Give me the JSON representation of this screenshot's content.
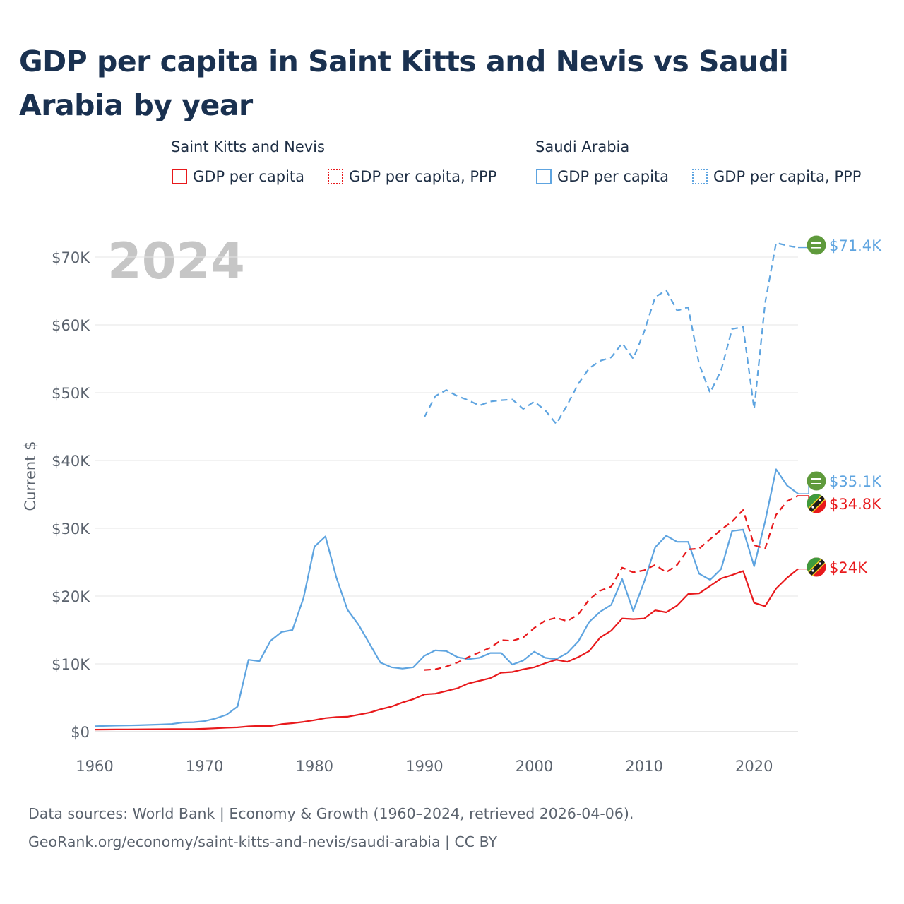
{
  "title": "GDP per capita in Saint Kitts and Nevis vs Saudi Arabia by year",
  "legend": {
    "groups": [
      {
        "country": "Saint Kitts and Nevis",
        "color": "#e8191c",
        "items": [
          {
            "label": "GDP per capita",
            "style": "solid"
          },
          {
            "label": "GDP per capita, PPP",
            "style": "dotted"
          }
        ]
      },
      {
        "country": "Saudi Arabia",
        "color": "#5ea4e0",
        "items": [
          {
            "label": "GDP per capita",
            "style": "solid"
          },
          {
            "label": "GDP per capita, PPP",
            "style": "dotted"
          }
        ]
      }
    ]
  },
  "footer": {
    "line1": "Data sources: World Bank | Economy & Growth (1960–2024, retrieved 2026-04-06).",
    "line2": "GeoRank.org/economy/saint-kitts-and-nevis/saudi-arabia | CC BY"
  },
  "chart_data": {
    "type": "line",
    "year_label": "2024",
    "ylabel": "Current $",
    "xlabel": "",
    "xlim": [
      1960,
      2024
    ],
    "ylim": [
      0,
      75000
    ],
    "x_ticks": [
      1960,
      1970,
      1980,
      1990,
      2000,
      2010,
      2020
    ],
    "x_tick_labels": [
      "1960",
      "1970",
      "1980",
      "1990",
      "2000",
      "2010",
      "2020"
    ],
    "y_ticks": [
      0,
      10000,
      20000,
      30000,
      40000,
      50000,
      60000,
      70000
    ],
    "y_tick_labels": [
      "$0",
      "$10K",
      "$20K",
      "$30K",
      "$40K",
      "$50K",
      "$60K",
      "$70K"
    ],
    "grid": true,
    "series": [
      {
        "name": "Saudi Arabia GDP per capita, PPP",
        "country": "Saudi Arabia",
        "color": "#5ea4e0",
        "dash": "dashed",
        "end_label": "$71.4K",
        "points": [
          [
            1990,
            46400
          ],
          [
            1991,
            49500
          ],
          [
            1992,
            50400
          ],
          [
            1993,
            49500
          ],
          [
            1994,
            48900
          ],
          [
            1995,
            48100
          ],
          [
            1996,
            48700
          ],
          [
            1997,
            48900
          ],
          [
            1998,
            49000
          ],
          [
            1999,
            47600
          ],
          [
            2000,
            48700
          ],
          [
            2001,
            47400
          ],
          [
            2002,
            45400
          ],
          [
            2003,
            48200
          ],
          [
            2004,
            51300
          ],
          [
            2005,
            53600
          ],
          [
            2006,
            54700
          ],
          [
            2007,
            55200
          ],
          [
            2008,
            57300
          ],
          [
            2009,
            55000
          ],
          [
            2010,
            59000
          ],
          [
            2011,
            64100
          ],
          [
            2012,
            65100
          ],
          [
            2013,
            62100
          ],
          [
            2014,
            62600
          ],
          [
            2015,
            54200
          ],
          [
            2016,
            50000
          ],
          [
            2017,
            53300
          ],
          [
            2018,
            59400
          ],
          [
            2019,
            59700
          ],
          [
            2020,
            47600
          ],
          [
            2021,
            63200
          ],
          [
            2022,
            72100
          ],
          [
            2023,
            71700
          ],
          [
            2024,
            71400
          ]
        ]
      },
      {
        "name": "Saudi Arabia GDP per capita",
        "country": "Saudi Arabia",
        "color": "#5ea4e0",
        "dash": "solid",
        "end_label": "$35.1K",
        "points": [
          [
            1960,
            800
          ],
          [
            1961,
            850
          ],
          [
            1962,
            900
          ],
          [
            1963,
            920
          ],
          [
            1964,
            950
          ],
          [
            1965,
            1000
          ],
          [
            1966,
            1050
          ],
          [
            1967,
            1120
          ],
          [
            1968,
            1350
          ],
          [
            1969,
            1400
          ],
          [
            1970,
            1550
          ],
          [
            1971,
            1950
          ],
          [
            1972,
            2500
          ],
          [
            1973,
            3700
          ],
          [
            1974,
            10600
          ],
          [
            1975,
            10400
          ],
          [
            1976,
            13400
          ],
          [
            1977,
            14700
          ],
          [
            1978,
            15000
          ],
          [
            1979,
            19700
          ],
          [
            1980,
            27300
          ],
          [
            1981,
            28800
          ],
          [
            1982,
            22700
          ],
          [
            1983,
            18000
          ],
          [
            1984,
            15800
          ],
          [
            1985,
            13000
          ],
          [
            1986,
            10200
          ],
          [
            1987,
            9500
          ],
          [
            1988,
            9300
          ],
          [
            1989,
            9500
          ],
          [
            1990,
            11200
          ],
          [
            1991,
            12000
          ],
          [
            1992,
            11900
          ],
          [
            1993,
            11000
          ],
          [
            1994,
            10700
          ],
          [
            1995,
            10900
          ],
          [
            1996,
            11600
          ],
          [
            1997,
            11600
          ],
          [
            1998,
            9900
          ],
          [
            1999,
            10500
          ],
          [
            2000,
            11800
          ],
          [
            2001,
            10900
          ],
          [
            2002,
            10700
          ],
          [
            2003,
            11600
          ],
          [
            2004,
            13300
          ],
          [
            2005,
            16200
          ],
          [
            2006,
            17700
          ],
          [
            2007,
            18700
          ],
          [
            2008,
            22500
          ],
          [
            2009,
            17800
          ],
          [
            2010,
            22100
          ],
          [
            2011,
            27200
          ],
          [
            2012,
            28900
          ],
          [
            2013,
            28000
          ],
          [
            2014,
            28000
          ],
          [
            2015,
            23300
          ],
          [
            2016,
            22400
          ],
          [
            2017,
            24000
          ],
          [
            2018,
            29600
          ],
          [
            2019,
            29800
          ],
          [
            2020,
            24400
          ],
          [
            2021,
            31000
          ],
          [
            2022,
            38700
          ],
          [
            2023,
            36300
          ],
          [
            2024,
            35100
          ]
        ]
      },
      {
        "name": "Saint Kitts and Nevis GDP per capita, PPP",
        "country": "Saint Kitts and Nevis",
        "color": "#e8191c",
        "dash": "dashed",
        "end_label": "$34.8K",
        "points": [
          [
            1990,
            9100
          ],
          [
            1991,
            9200
          ],
          [
            1992,
            9600
          ],
          [
            1993,
            10200
          ],
          [
            1994,
            11000
          ],
          [
            1995,
            11700
          ],
          [
            1996,
            12400
          ],
          [
            1997,
            13500
          ],
          [
            1998,
            13400
          ],
          [
            1999,
            13900
          ],
          [
            2000,
            15300
          ],
          [
            2001,
            16400
          ],
          [
            2002,
            16800
          ],
          [
            2003,
            16300
          ],
          [
            2004,
            17300
          ],
          [
            2005,
            19500
          ],
          [
            2006,
            20800
          ],
          [
            2007,
            21400
          ],
          [
            2008,
            24200
          ],
          [
            2009,
            23500
          ],
          [
            2010,
            23800
          ],
          [
            2011,
            24600
          ],
          [
            2012,
            23500
          ],
          [
            2013,
            24600
          ],
          [
            2014,
            26900
          ],
          [
            2015,
            27000
          ],
          [
            2016,
            28400
          ],
          [
            2017,
            29800
          ],
          [
            2018,
            31000
          ],
          [
            2019,
            32700
          ],
          [
            2020,
            27500
          ],
          [
            2021,
            27000
          ],
          [
            2022,
            32000
          ],
          [
            2023,
            34000
          ],
          [
            2024,
            34800
          ]
        ]
      },
      {
        "name": "Saint Kitts and Nevis GDP per capita",
        "country": "Saint Kitts and Nevis",
        "color": "#e8191c",
        "dash": "solid",
        "end_label": "$24K",
        "points": [
          [
            1960,
            300
          ],
          [
            1961,
            310
          ],
          [
            1962,
            320
          ],
          [
            1963,
            330
          ],
          [
            1964,
            340
          ],
          [
            1965,
            350
          ],
          [
            1966,
            360
          ],
          [
            1967,
            380
          ],
          [
            1968,
            380
          ],
          [
            1969,
            390
          ],
          [
            1970,
            430
          ],
          [
            1971,
            500
          ],
          [
            1972,
            580
          ],
          [
            1973,
            640
          ],
          [
            1974,
            780
          ],
          [
            1975,
            840
          ],
          [
            1976,
            820
          ],
          [
            1977,
            1100
          ],
          [
            1978,
            1250
          ],
          [
            1979,
            1450
          ],
          [
            1980,
            1700
          ],
          [
            1981,
            2000
          ],
          [
            1982,
            2150
          ],
          [
            1983,
            2200
          ],
          [
            1984,
            2500
          ],
          [
            1985,
            2800
          ],
          [
            1986,
            3300
          ],
          [
            1987,
            3700
          ],
          [
            1988,
            4300
          ],
          [
            1989,
            4800
          ],
          [
            1990,
            5500
          ],
          [
            1991,
            5600
          ],
          [
            1992,
            6000
          ],
          [
            1993,
            6400
          ],
          [
            1994,
            7100
          ],
          [
            1995,
            7500
          ],
          [
            1996,
            7900
          ],
          [
            1997,
            8700
          ],
          [
            1998,
            8800
          ],
          [
            1999,
            9200
          ],
          [
            2000,
            9500
          ],
          [
            2001,
            10100
          ],
          [
            2002,
            10600
          ],
          [
            2003,
            10300
          ],
          [
            2004,
            11000
          ],
          [
            2005,
            11900
          ],
          [
            2006,
            13900
          ],
          [
            2007,
            14900
          ],
          [
            2008,
            16700
          ],
          [
            2009,
            16600
          ],
          [
            2010,
            16700
          ],
          [
            2011,
            17900
          ],
          [
            2012,
            17600
          ],
          [
            2013,
            18600
          ],
          [
            2014,
            20300
          ],
          [
            2015,
            20400
          ],
          [
            2016,
            21500
          ],
          [
            2017,
            22600
          ],
          [
            2018,
            23100
          ],
          [
            2019,
            23700
          ],
          [
            2020,
            19000
          ],
          [
            2021,
            18500
          ],
          [
            2022,
            21100
          ],
          [
            2023,
            22700
          ],
          [
            2024,
            24000
          ]
        ]
      }
    ]
  }
}
